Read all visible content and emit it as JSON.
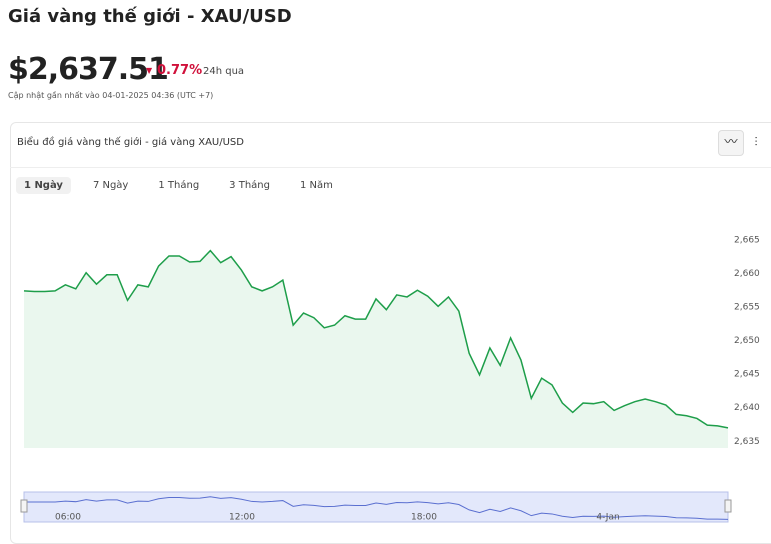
{
  "header": {
    "title": "Giá vàng thế giới - XAU/USD",
    "price": "$2,637.51",
    "change": "0.77%",
    "period": "24h qua",
    "updated": "Cập nhật gần nhất vào 04-01-2025 04:36 (UTC +7)"
  },
  "card": {
    "title": "Biểu đồ giá vàng thế giới - giá vàng XAU/USD",
    "tabs": [
      "1 Ngày",
      "7 Ngày",
      "1 Tháng",
      "3 Tháng",
      "1 Năm"
    ]
  },
  "chart_data": {
    "type": "area",
    "color": "#1e9e4a",
    "values": [
      2657.4,
      2657.3,
      2657.3,
      2657.4,
      2658.3,
      2657.7,
      2660.1,
      2658.4,
      2659.8,
      2659.8,
      2656,
      2658.3,
      2658,
      2661.1,
      2662.6,
      2662.6,
      2661.7,
      2661.8,
      2663.4,
      2661.6,
      2662.5,
      2660.5,
      2658,
      2657.4,
      2658,
      2659,
      2652.3,
      2654.1,
      2653.4,
      2651.9,
      2652.3,
      2653.7,
      2653.2,
      2653.2,
      2656.2,
      2654.6,
      2656.8,
      2656.5,
      2657.5,
      2656.6,
      2655.1,
      2656.5,
      2654.4,
      2648.1,
      2644.9,
      2648.9,
      2646.3,
      2650.4,
      2647.1,
      2641.4,
      2644.4,
      2643.4,
      2640.7,
      2639.3,
      2640.7,
      2640.6,
      2640.9,
      2639.6,
      2640.3,
      2640.9,
      2641.3,
      2640.9,
      2640.4,
      2639,
      2638.8,
      2638.4,
      2637.4,
      2637.3,
      2637
    ],
    "ylim": [
      2634,
      2669
    ],
    "yticks": [
      {
        "value": 2635,
        "label": "2,635"
      },
      {
        "value": 2640,
        "label": "2,640"
      },
      {
        "value": 2645,
        "label": "2,645"
      },
      {
        "value": 2650,
        "label": "2,650"
      },
      {
        "value": 2655,
        "label": "2,655"
      },
      {
        "value": 2660,
        "label": "2,660"
      },
      {
        "value": 2665,
        "label": "2,665"
      }
    ],
    "navigator_labels": [
      "06:00",
      "12:00",
      "18:00",
      "4-Jan"
    ]
  }
}
